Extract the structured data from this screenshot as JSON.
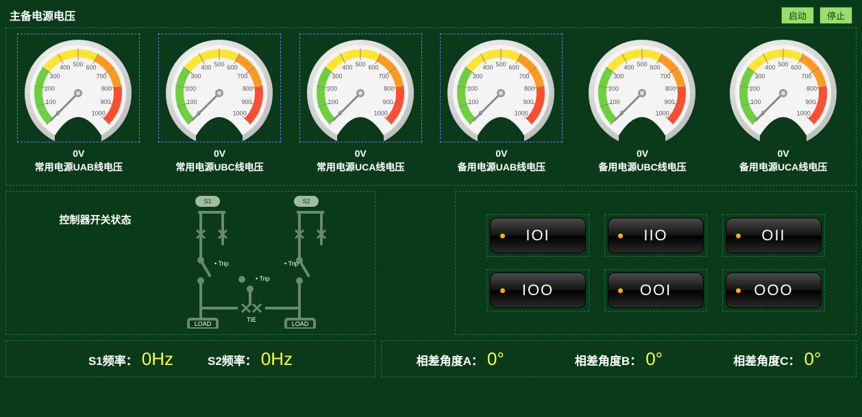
{
  "header": {
    "title": "主备电源电压",
    "start_button": "启动",
    "stop_button": "停止"
  },
  "gauge_style": {
    "min": 0,
    "max": 1000,
    "ticks": [
      0,
      100,
      200,
      300,
      400,
      500,
      600,
      700,
      800,
      900,
      1000
    ],
    "start_angle_deg": -135,
    "end_angle_deg": 135,
    "colors": {
      "green_range": [
        0,
        300
      ],
      "yellow_range": [
        300,
        600
      ],
      "orange_range": [
        600,
        800
      ],
      "red_range": [
        800,
        1000
      ],
      "green": "#6fcf3f",
      "yellow": "#ffe430",
      "orange": "#ff9a20",
      "red": "#ff4d30",
      "face": "#f4f4f4",
      "bezel_light": "#ffffff",
      "bezel_dark": "#bfbfbf",
      "tick_text": "#555555"
    },
    "needle_value": 0
  },
  "gauges": [
    {
      "value": "0V",
      "label": "常用电源UAB线电压",
      "selected": true
    },
    {
      "value": "0V",
      "label": "常用电源UBC线电压",
      "selected": true
    },
    {
      "value": "0V",
      "label": "常用电源UCA线电压",
      "selected": true
    },
    {
      "value": "0V",
      "label": "备用电源UAB线电压",
      "selected": true
    },
    {
      "value": "0V",
      "label": "备用电源UBC线电压",
      "selected": false
    },
    {
      "value": "0V",
      "label": "备用电源UCA线电压",
      "selected": false
    }
  ],
  "switch_panel": {
    "title": "控制器开关状态",
    "diagram": {
      "s1_label": "S1",
      "s2_label": "S2",
      "tie_label": "TIE",
      "load_label": "LOAD",
      "trip_label": "• Trip",
      "line_color": "#6a8a6a",
      "box_fill": "#9dbf9d"
    }
  },
  "pattern_panel": {
    "dot_color": "#ffb000",
    "bg_gradient_top": "#4a4a4a",
    "bg_gradient_bottom": "#000000",
    "rows": [
      [
        "IOI",
        "IIO",
        "OII"
      ],
      [
        "IOO",
        "OOI",
        "OOO"
      ]
    ]
  },
  "bottom": {
    "freq": [
      {
        "label": "S1频率：",
        "value": "0Hz"
      },
      {
        "label": "S2频率：",
        "value": "0Hz"
      }
    ],
    "angle": [
      {
        "label": "相差角度A：",
        "value": "0°"
      },
      {
        "label": "相差角度B：",
        "value": "0°"
      },
      {
        "label": "相差角度C：",
        "value": "0°"
      }
    ]
  },
  "colors": {
    "page_bg": "#0a3a1a",
    "dash_border": "#1e7a3a",
    "selection_border": "#6a7dff",
    "button_bg": "#9ade6c",
    "value_text": "#ffff33"
  }
}
